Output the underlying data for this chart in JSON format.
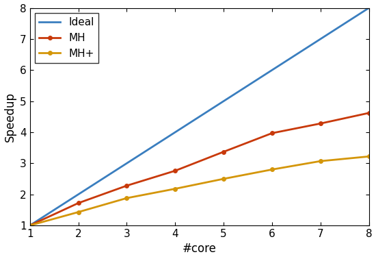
{
  "x": [
    1,
    2,
    3,
    4,
    5,
    6,
    7,
    8
  ],
  "ideal": [
    1,
    2,
    3,
    4,
    5,
    6,
    7,
    8
  ],
  "mh": [
    1,
    1.72,
    2.28,
    2.76,
    3.37,
    3.97,
    4.28,
    4.62
  ],
  "mhplus": [
    1,
    1.43,
    1.88,
    2.18,
    2.5,
    2.8,
    3.07,
    3.22
  ],
  "ideal_color": "#3a7ebf",
  "mh_color": "#c8390a",
  "mhplus_color": "#d4960a",
  "xlabel": "#core",
  "ylabel": "Speedup",
  "xlim": [
    1,
    8
  ],
  "ylim": [
    1,
    8
  ],
  "xticks": [
    1,
    2,
    3,
    4,
    5,
    6,
    7,
    8
  ],
  "yticks": [
    1,
    2,
    3,
    4,
    5,
    6,
    7,
    8
  ],
  "legend_labels": [
    "Ideal",
    "MH",
    "MH+"
  ],
  "legend_loc": "upper left",
  "line_width": 2.0,
  "marker": "o",
  "marker_size": 4,
  "bg_color": "#ffffff",
  "tick_fontsize": 11,
  "label_fontsize": 12,
  "legend_fontsize": 11
}
